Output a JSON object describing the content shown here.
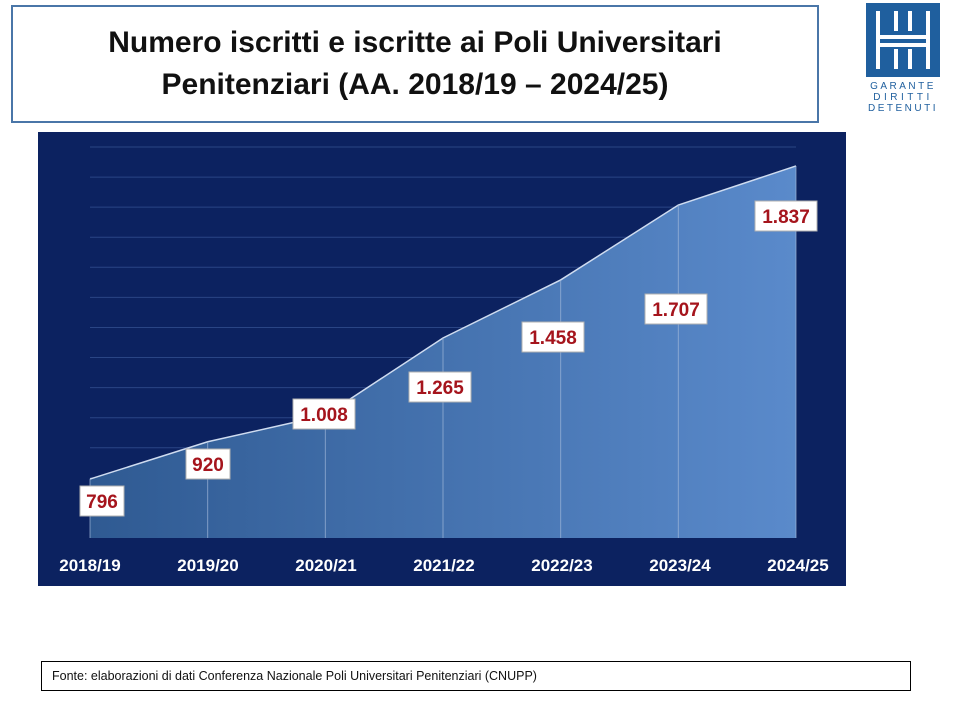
{
  "title": {
    "line1": "Numero iscritti e iscritte ai Poli Universitari",
    "line2": "Penitenziari (AA. 2018/19 – 2024/25)"
  },
  "logo": {
    "text_lines": [
      "GARANTE",
      "DIRITTI",
      "DETENUTI"
    ],
    "color": "#1f5f9e"
  },
  "source": "Fonte: elaborazioni di dati  Conferenza Nazionale Poli Universitari Penitenziari (CNUPP)",
  "chart_data": {
    "type": "area",
    "categories": [
      "2018/19",
      "2019/20",
      "2020/21",
      "2021/22",
      "2022/23",
      "2023/24",
      "2024/25"
    ],
    "values": [
      796,
      920,
      1008,
      1265,
      1458,
      1707,
      1837
    ],
    "data_labels": [
      "796",
      "920",
      "1.008",
      "1.265",
      "1.458",
      "1.707",
      "1.837"
    ],
    "title": "",
    "xlabel": "",
    "ylabel": "",
    "grid": true,
    "colors": {
      "background": "#0c2260",
      "area_top": "#2f5a92",
      "area_bottom": "#5a8acb",
      "label_text": "#a5141c"
    }
  }
}
